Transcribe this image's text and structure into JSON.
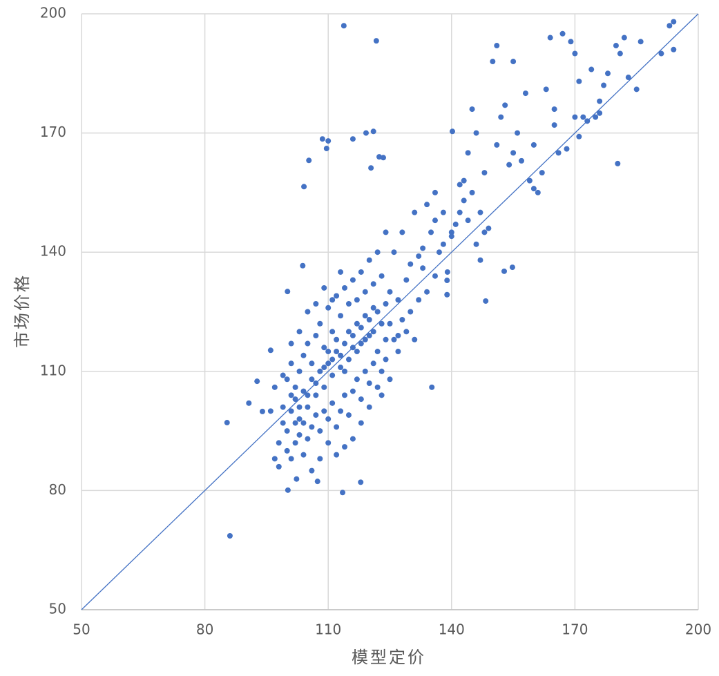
{
  "chart_data": {
    "type": "scatter",
    "x_label": "模型定价",
    "y_label": "市场价格",
    "xlim": [
      50,
      200
    ],
    "xticks": [
      50,
      80,
      110,
      140,
      170,
      200
    ],
    "ylim": [
      50,
      200
    ],
    "yticks": [
      50,
      80,
      110,
      140,
      170,
      200
    ],
    "grid": true,
    "series": [
      {
        "color": "#4472c4",
        "x": [
          85.4,
          86.1,
          92.7,
          90.7,
          94.0,
          96.0,
          100.1,
          100.2,
          103.8,
          104.1,
          105.3,
          108.6,
          109.6,
          110.0,
          113.8,
          121.7,
          116.0,
          119.2,
          121.0,
          122.4,
          123.4,
          120.4,
          113.5,
          117.9,
          107.4,
          102.3,
          135.2,
          148.3,
          154.8,
          152.8,
          180.4,
          171.0,
          138.9,
          138.9,
          140.2,
          143,
          144,
          145,
          146,
          147,
          148,
          149,
          150,
          151,
          152,
          153,
          154,
          155,
          156,
          157,
          158,
          159,
          160,
          161,
          162,
          163,
          164,
          165,
          166,
          167,
          168,
          169,
          170,
          171,
          172,
          173,
          174,
          175,
          176,
          177,
          178,
          180,
          181,
          182,
          183,
          185,
          186,
          191,
          193,
          194,
          194,
          151,
          155,
          160,
          165,
          170,
          176,
          125,
          126,
          127,
          128,
          129,
          130,
          131,
          132,
          133,
          134,
          135,
          136,
          137,
          138,
          139,
          140,
          141,
          142,
          143,
          144,
          130,
          128,
          132,
          134,
          136,
          129,
          131,
          127,
          125,
          123,
          127,
          133,
          136,
          138,
          140,
          142,
          145,
          146,
          147,
          148,
          100,
          101,
          102,
          103,
          104,
          105,
          106,
          107,
          108,
          109,
          110,
          111,
          112,
          113,
          114,
          115,
          116,
          117,
          118,
          119,
          120,
          121,
          122,
          123,
          124,
          100,
          101,
          102,
          103,
          104,
          105,
          106,
          107,
          108,
          109,
          110,
          111,
          112,
          113,
          114,
          115,
          116,
          117,
          118,
          119,
          120,
          121,
          122,
          123,
          124,
          100,
          101,
          102,
          103,
          104,
          105,
          106,
          107,
          108,
          109,
          110,
          111,
          112,
          113,
          114,
          115,
          116,
          117,
          118,
          119,
          120,
          121,
          122,
          123,
          124,
          98,
          99,
          97,
          98,
          99,
          110,
          112,
          113,
          115,
          116,
          117,
          118,
          119,
          120,
          121,
          114,
          111,
          109,
          107,
          105,
          125,
          126,
          124,
          122,
          120,
          118,
          116,
          114,
          112,
          110,
          108,
          106,
          104,
          103,
          102,
          101,
          96,
          97,
          99,
          101,
          103,
          105,
          107,
          109,
          111,
          113
        ],
        "values": [
          97.1,
          68.6,
          107.5,
          102.0,
          99.9,
          115.3,
          130.1,
          80.1,
          136.6,
          156.5,
          163.1,
          168.5,
          166.1,
          168.0,
          197.0,
          193.2,
          168.5,
          170.0,
          170.4,
          164.0,
          163.8,
          161.2,
          79.5,
          82.1,
          82.3,
          82.9,
          106.0,
          127.7,
          136.2,
          135.2,
          162.3,
          169.1,
          129.3,
          132.9,
          170.4,
          158,
          165,
          176,
          170,
          150,
          160,
          146,
          188,
          167,
          174,
          177,
          162,
          188,
          170,
          163,
          180,
          158,
          167,
          155,
          160,
          181,
          194,
          176,
          165,
          195,
          166,
          193,
          190,
          183,
          174,
          173,
          186,
          174,
          178,
          182,
          185,
          192,
          190,
          194,
          184,
          181,
          193,
          190,
          197,
          191,
          198,
          192,
          165,
          156,
          172,
          174,
          175,
          130,
          140,
          128,
          145,
          133,
          137,
          150,
          139,
          141,
          152,
          145,
          148,
          140,
          142,
          135,
          144,
          147,
          150,
          153,
          148,
          125,
          123,
          128,
          130,
          134,
          120,
          118,
          115,
          108,
          104,
          119,
          136,
          155,
          150,
          145,
          157,
          155,
          142,
          138,
          145,
          95,
          100,
          103,
          98,
          105,
          101,
          108,
          104,
          110,
          106,
          112,
          109,
          115,
          111,
          117,
          113,
          119,
          115,
          121,
          118,
          123,
          120,
          125,
          122,
          127,
          90,
          88,
          92,
          94,
          97,
          93,
          96,
          99,
          95,
          100,
          98,
          102,
          96,
          100,
          104,
          99,
          105,
          108,
          103,
          110,
          107,
          112,
          115,
          110,
          118,
          108,
          112,
          106,
          110,
          114,
          117,
          112,
          119,
          122,
          116,
          126,
          120,
          129,
          124,
          131,
          127,
          133,
          128,
          135,
          130,
          138,
          132,
          140,
          134,
          145,
          92,
          97,
          88,
          86,
          101,
          115,
          118,
          114,
          120,
          116,
          122,
          117,
          124,
          119,
          126,
          110,
          113,
          111,
          107,
          104,
          122,
          118,
          113,
          106,
          101,
          97,
          93,
          91,
          89,
          92,
          88,
          85,
          89,
          101,
          97,
          104,
          100,
          106,
          109,
          117,
          120,
          125,
          127,
          131,
          128,
          135
        ]
      },
      {
        "type": "line",
        "color": "#4472c4",
        "x": [
          50,
          200
        ],
        "values": [
          50,
          200
        ]
      }
    ]
  }
}
